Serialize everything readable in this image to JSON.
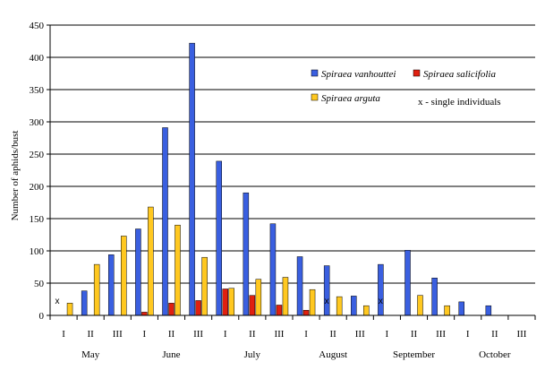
{
  "chart_data": {
    "type": "bar",
    "ylabel": "Number of aphids/bust",
    "ylim": [
      0,
      450
    ],
    "yticks": [
      0,
      50,
      100,
      150,
      200,
      250,
      300,
      350,
      400,
      450
    ],
    "grid": true,
    "legend_position": "right",
    "categories": [
      "I",
      "II",
      "III",
      "I",
      "II",
      "III",
      "I",
      "II",
      "III",
      "I",
      "II",
      "III",
      "I",
      "II",
      "III",
      "I",
      "II",
      "III"
    ],
    "months": [
      {
        "label": "May",
        "start": 0
      },
      {
        "label": "June",
        "start": 3
      },
      {
        "label": "July",
        "start": 6
      },
      {
        "label": "August",
        "start": 9
      },
      {
        "label": "September",
        "start": 12
      },
      {
        "label": "October",
        "start": 15
      }
    ],
    "series": [
      {
        "name": "Spiraea vanhouttei",
        "color": "#3a5fe0",
        "values": [
          0,
          38,
          94,
          134,
          291,
          422,
          239,
          190,
          142,
          91,
          77,
          30,
          79,
          101,
          58,
          21,
          15,
          0
        ]
      },
      {
        "name": "Spiraea salicifolia",
        "color": "#e02010",
        "values": [
          0,
          0,
          0,
          5,
          19,
          23,
          41,
          31,
          16,
          8,
          0,
          0,
          0,
          0,
          0,
          0,
          0,
          0
        ]
      },
      {
        "name": "Spiraea arguta",
        "color": "#ffc820",
        "values": [
          19,
          79,
          123,
          168,
          140,
          90,
          42,
          56,
          59,
          40,
          29,
          15,
          0,
          31,
          15,
          0,
          0,
          0
        ]
      }
    ],
    "single_marker_label": "x - single individuals",
    "single_marker_symbol": "x",
    "single_marks": [
      0,
      10,
      12
    ]
  }
}
